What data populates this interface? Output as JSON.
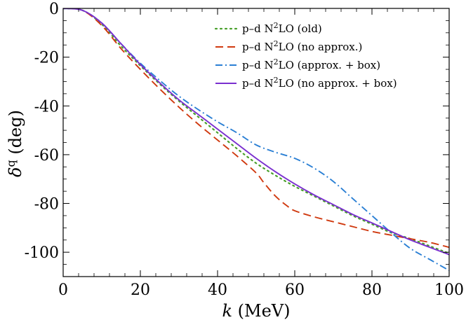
{
  "chart_data": {
    "type": "line",
    "title": "",
    "xlabel": "k (MeV)",
    "ylabel": "δq (deg)",
    "xlim": [
      0,
      100
    ],
    "ylim": [
      -110,
      0
    ],
    "xticks": [
      0,
      20,
      40,
      60,
      80,
      100
    ],
    "yticks": [
      0,
      -20,
      -40,
      -60,
      -80,
      -100
    ],
    "xtick_labels": [
      "0",
      "20",
      "40",
      "60",
      "80",
      "100"
    ],
    "ytick_labels": [
      "0",
      "-20",
      "-40",
      "-60",
      "-80",
      "-100"
    ],
    "grid": false,
    "legend_position": "top-right",
    "series": [
      {
        "name": "p–d N²LO (old)",
        "color": "#4aa02c",
        "dash": "dotted",
        "x": [
          0,
          5,
          10,
          15,
          20,
          25,
          30,
          35,
          40,
          45,
          50,
          55,
          60,
          65,
          70,
          75,
          80,
          85,
          90,
          95,
          100
        ],
        "y": [
          0,
          -0.8,
          -6.5,
          -15.5,
          -23.5,
          -31,
          -38,
          -44.5,
          -51,
          -57.5,
          -63.5,
          -68.5,
          -73,
          -77,
          -81,
          -85,
          -88.5,
          -92,
          -94.5,
          -97.5,
          -100.5
        ]
      },
      {
        "name": "p–d N²LO (no approx.)",
        "color": "#d03a10",
        "dash": "dashed",
        "x": [
          0,
          5,
          10,
          15,
          20,
          25,
          30,
          35,
          40,
          45,
          50,
          52,
          55,
          58,
          60,
          65,
          70,
          75,
          80,
          85,
          90,
          95,
          100
        ],
        "y": [
          0,
          -0.8,
          -7,
          -16.5,
          -25,
          -33,
          -40.5,
          -47.5,
          -54,
          -60.5,
          -67.5,
          -71.5,
          -77,
          -81,
          -83,
          -85.5,
          -87.5,
          -89.5,
          -91.5,
          -93,
          -94.5,
          -96,
          -98
        ]
      },
      {
        "name": "p–d N²LO (approx. + box)",
        "color": "#2a7fd4",
        "dash": "dashdot",
        "x": [
          0,
          5,
          10,
          15,
          20,
          25,
          30,
          35,
          40,
          45,
          50,
          55,
          60,
          65,
          70,
          75,
          80,
          85,
          90,
          95,
          100
        ],
        "y": [
          0,
          -0.8,
          -6,
          -14.5,
          -22.5,
          -29.5,
          -36,
          -41.5,
          -46.5,
          -51,
          -56,
          -59,
          -61.5,
          -65.5,
          -71,
          -78,
          -85,
          -92,
          -98.5,
          -103,
          -107.5
        ]
      },
      {
        "name": "p–d N²LO (no approx. + box)",
        "color": "#7a2fcf",
        "dash": "solid",
        "x": [
          0,
          5,
          10,
          15,
          20,
          25,
          30,
          35,
          40,
          45,
          50,
          55,
          60,
          65,
          70,
          75,
          80,
          85,
          90,
          95,
          100
        ],
        "y": [
          0,
          -0.8,
          -6,
          -14.5,
          -23,
          -30.5,
          -37.5,
          -43.5,
          -49.5,
          -55.5,
          -61.5,
          -67,
          -72,
          -76.5,
          -80.5,
          -84.5,
          -88,
          -91.5,
          -95,
          -98,
          -101
        ]
      }
    ],
    "legend": [
      {
        "prefix": "p–d N",
        "sup": "2",
        "suffix": "LO (old)"
      },
      {
        "prefix": "p–d N",
        "sup": "2",
        "suffix": "LO (no approx.)"
      },
      {
        "prefix": "p–d N",
        "sup": "2",
        "suffix": "LO (approx. + box)"
      },
      {
        "prefix": "p–d N",
        "sup": "2",
        "suffix": "LO (no approx. + box)"
      }
    ]
  }
}
